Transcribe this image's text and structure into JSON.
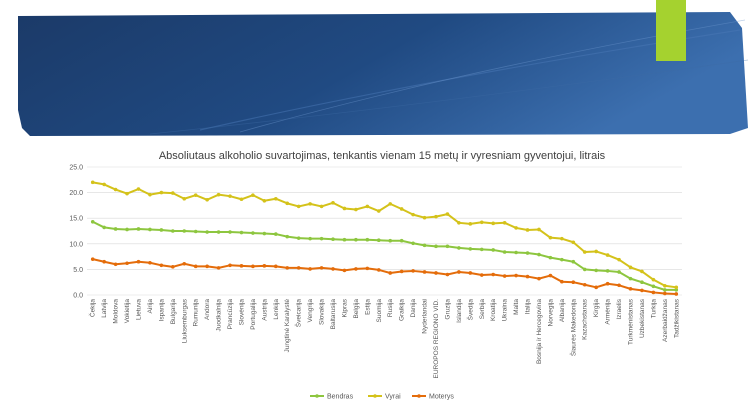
{
  "chart_data": {
    "type": "line",
    "title": "Absoliutaus alkoholio suvartojimas, tenkantis vienam 15 metų ir vyresniam gyventojui, litrais",
    "ylim": [
      0,
      25
    ],
    "yticks": [
      "0.0",
      "5.0",
      "10.0",
      "15.0",
      "20.0",
      "25.0"
    ],
    "grid": true,
    "legend_position": "bottom",
    "categories": [
      "Čekija",
      "Latvija",
      "Moldova",
      "Vokietija",
      "Lietuva",
      "Airija",
      "Ispanija",
      "Bulgarija",
      "Liuksemburgas",
      "Rumunija",
      "Andora",
      "Juodkalnija",
      "Prancūzija",
      "Slovėnija",
      "Portugalija",
      "Austrija",
      "Lenkija",
      "Jungtinė Karalystė",
      "Šveicarija",
      "Vengrija",
      "Slovakija",
      "Baltarusija",
      "Kipras",
      "Belgija",
      "Estija",
      "Suomija",
      "Rusija",
      "Graikija",
      "Danija",
      "Nyderlandai",
      "EUROPOS REGIONO VID.",
      "Gruzija",
      "Islandija",
      "Švedija",
      "Serbija",
      "Kroatija",
      "Ukraina",
      "Malta",
      "Italija",
      "Bosnija ir Hercegovina",
      "Norvegija",
      "Albanija",
      "Šiaurės Makedonija",
      "Kazachstanas",
      "Kirgija",
      "Armėnija",
      "Izraelis",
      "Turkmėnistanas",
      "Uzbekistanas",
      "Turkija",
      "Azerbaidžanas",
      "Tadžikistanas"
    ],
    "series": [
      {
        "name": "Bendras",
        "color": "#8DC63F",
        "values": [
          14.3,
          13.2,
          12.9,
          12.8,
          12.9,
          12.8,
          12.7,
          12.5,
          12.5,
          12.4,
          12.3,
          12.3,
          12.3,
          12.2,
          12.1,
          12.0,
          11.9,
          11.4,
          11.1,
          11.0,
          11.0,
          10.9,
          10.8,
          10.8,
          10.8,
          10.7,
          10.6,
          10.6,
          10.1,
          9.7,
          9.5,
          9.5,
          9.2,
          9.0,
          8.9,
          8.8,
          8.4,
          8.3,
          8.2,
          7.9,
          7.3,
          6.9,
          6.5,
          5.0,
          4.8,
          4.7,
          4.5,
          3.2,
          2.5,
          1.7,
          1.0,
          1.0
        ]
      },
      {
        "name": "Vyrai",
        "color": "#D4C21A",
        "values": [
          22.0,
          21.6,
          20.6,
          19.8,
          20.7,
          19.6,
          20.0,
          19.9,
          18.8,
          19.5,
          18.6,
          19.6,
          19.3,
          18.7,
          19.5,
          18.4,
          18.8,
          17.9,
          17.3,
          17.8,
          17.3,
          18.0,
          16.9,
          16.7,
          17.3,
          16.4,
          17.8,
          16.8,
          15.7,
          15.1,
          15.3,
          15.8,
          14.1,
          13.9,
          14.2,
          14.0,
          14.1,
          13.1,
          12.7,
          12.8,
          11.2,
          11.0,
          10.3,
          8.4,
          8.5,
          7.8,
          6.9,
          5.4,
          4.6,
          3.0,
          1.8,
          1.5
        ]
      },
      {
        "name": "Moterys",
        "color": "#E46C0A",
        "values": [
          7.0,
          6.5,
          6.0,
          6.2,
          6.5,
          6.3,
          5.8,
          5.5,
          6.1,
          5.6,
          5.6,
          5.3,
          5.8,
          5.7,
          5.6,
          5.7,
          5.6,
          5.3,
          5.3,
          5.1,
          5.3,
          5.1,
          4.8,
          5.1,
          5.2,
          4.9,
          4.3,
          4.6,
          4.7,
          4.5,
          4.3,
          4.0,
          4.5,
          4.3,
          3.9,
          4.0,
          3.7,
          3.8,
          3.6,
          3.2,
          3.8,
          2.6,
          2.5,
          2.0,
          1.5,
          2.2,
          1.9,
          1.2,
          0.9,
          0.5,
          0.3,
          0.2
        ]
      }
    ]
  },
  "colors": {
    "banner_dark": "#1C3F71",
    "banner_light": "#5E8DC9",
    "accent_green": "#A5D22F",
    "grid": "#D9D9D9",
    "axis_text": "#595959"
  }
}
